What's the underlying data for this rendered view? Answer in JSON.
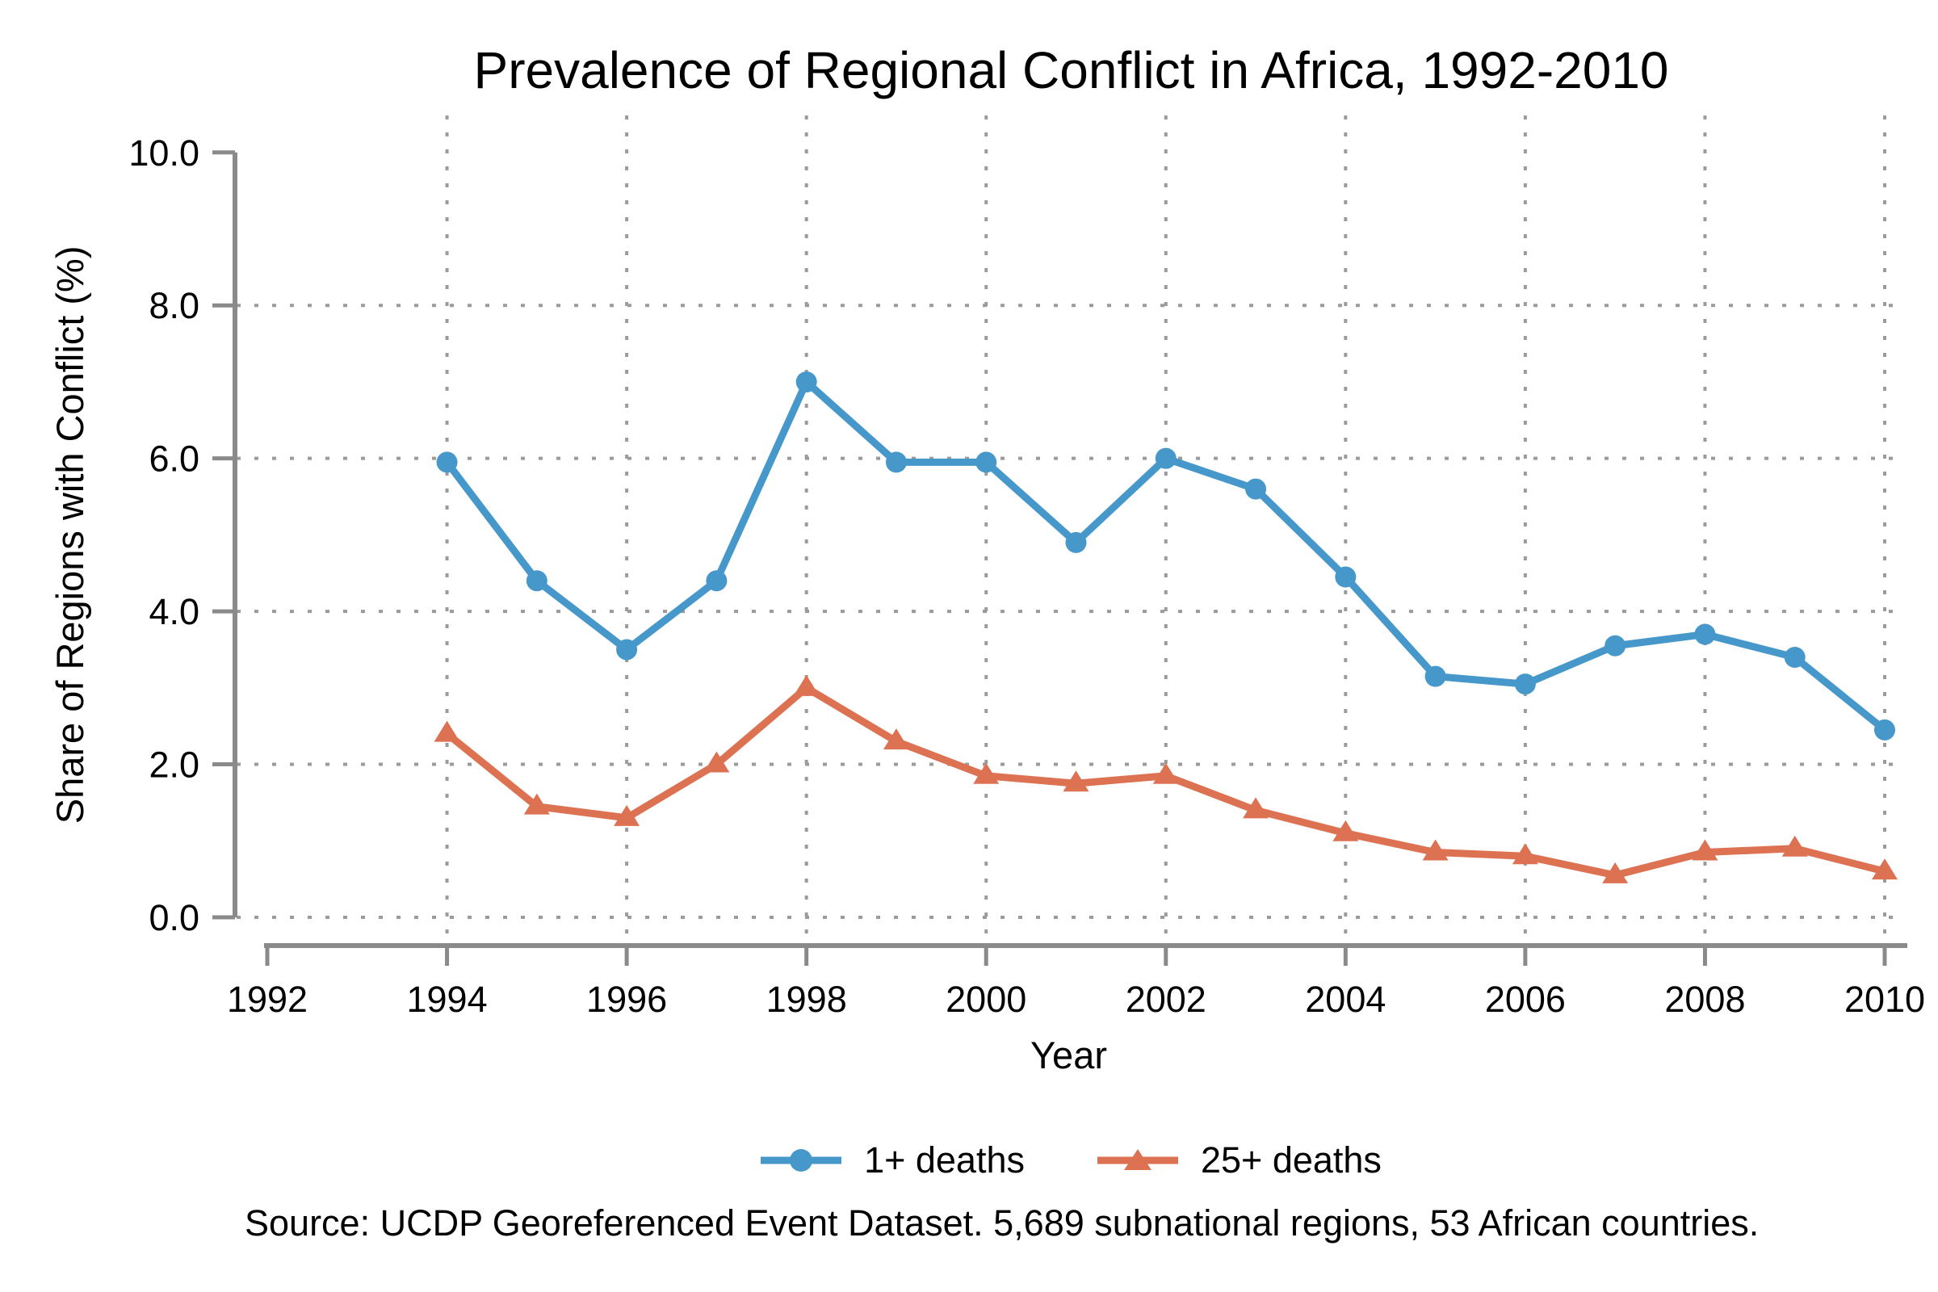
{
  "figure": {
    "title": "Prevalence of Regional Conflict in Africa, 1992-2010",
    "source_note": "Source: UCDP Georeferenced Event Dataset. 5,689 subnational regions, 53 African countries."
  },
  "chart_data": {
    "type": "line",
    "title": "Prevalence of Regional Conflict in Africa, 1992-2010",
    "xlabel": "Year",
    "ylabel": "Share of Regions with Conflict (%)",
    "xlim": [
      1992,
      2010
    ],
    "ylim": [
      0,
      10
    ],
    "x_ticks": [
      1992,
      1994,
      1996,
      1998,
      2000,
      2002,
      2004,
      2006,
      2008,
      2010
    ],
    "y_ticks": [
      0,
      2,
      4,
      6,
      8,
      10
    ],
    "grid": "dotted",
    "legend_position": "bottom",
    "x": [
      1994,
      1995,
      1996,
      1997,
      1998,
      1999,
      2000,
      2001,
      2002,
      2003,
      2004,
      2005,
      2006,
      2007,
      2008,
      2009,
      2010
    ],
    "series": [
      {
        "name": "1+ deaths",
        "marker": "circle",
        "color": "#4697CA",
        "values": [
          5.95,
          4.4,
          3.5,
          4.4,
          7.0,
          5.95,
          5.95,
          4.9,
          6.0,
          5.6,
          4.45,
          3.15,
          3.05,
          3.55,
          3.7,
          3.4,
          2.45
        ]
      },
      {
        "name": "25+ deaths",
        "marker": "triangle",
        "color": "#DD7253",
        "values": [
          2.4,
          1.45,
          1.3,
          2.0,
          3.0,
          2.3,
          1.85,
          1.75,
          1.85,
          1.4,
          1.1,
          0.85,
          0.8,
          0.55,
          0.85,
          0.9,
          0.6
        ]
      }
    ]
  },
  "colors": {
    "background": "#FFFFFF",
    "axis": "#8A8A8A",
    "gridline": "#9B9B9B",
    "text": "#000000",
    "series_1plus": "#4697CA",
    "series_25plus": "#DD7253"
  }
}
